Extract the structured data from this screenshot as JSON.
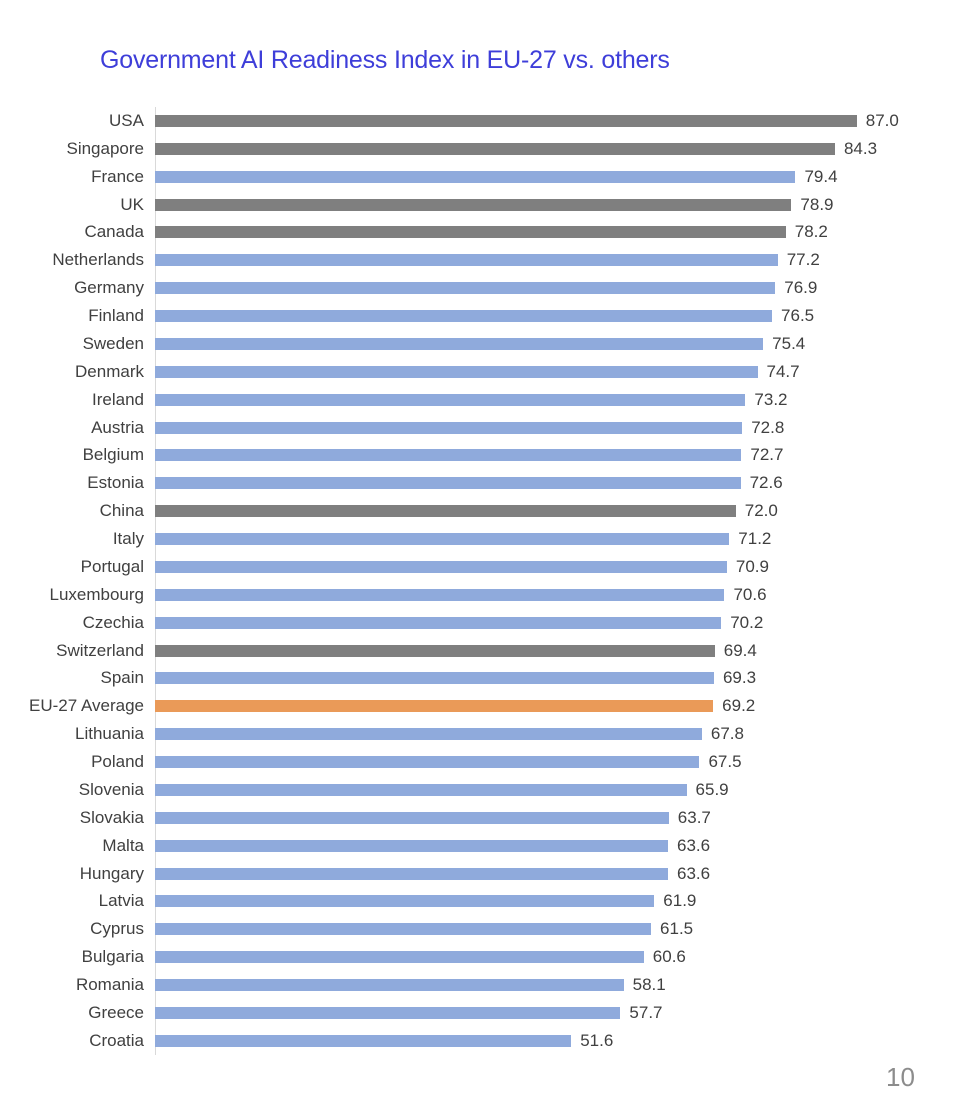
{
  "page": {
    "page_number": "10"
  },
  "title": {
    "text": "Government AI Readiness Index in EU-27 vs. others",
    "color": "#3E3ED9"
  },
  "chart_data": {
    "type": "bar",
    "orientation": "horizontal",
    "title": "Government AI Readiness Index in EU-27 vs. others",
    "xlabel": "",
    "ylabel": "",
    "xlim": [
      0,
      90
    ],
    "grid": false,
    "legend": false,
    "value_labels": "one-decimal, right of bar",
    "colors": {
      "eu": "#8FAADC",
      "non_eu": "#7F7F7F",
      "average": "#EA9A58"
    },
    "axis_line_color": "#D9D9D9",
    "label_text_color": "#404040",
    "points": [
      {
        "label": "USA",
        "value": 87.0,
        "group": "non_eu"
      },
      {
        "label": "Singapore",
        "value": 84.3,
        "group": "non_eu"
      },
      {
        "label": "France",
        "value": 79.4,
        "group": "eu"
      },
      {
        "label": "UK",
        "value": 78.9,
        "group": "non_eu"
      },
      {
        "label": "Canada",
        "value": 78.2,
        "group": "non_eu"
      },
      {
        "label": "Netherlands",
        "value": 77.2,
        "group": "eu"
      },
      {
        "label": "Germany",
        "value": 76.9,
        "group": "eu"
      },
      {
        "label": "Finland",
        "value": 76.5,
        "group": "eu"
      },
      {
        "label": "Sweden",
        "value": 75.4,
        "group": "eu"
      },
      {
        "label": "Denmark",
        "value": 74.7,
        "group": "eu"
      },
      {
        "label": "Ireland",
        "value": 73.2,
        "group": "eu"
      },
      {
        "label": "Austria",
        "value": 72.8,
        "group": "eu"
      },
      {
        "label": "Belgium",
        "value": 72.7,
        "group": "eu"
      },
      {
        "label": "Estonia",
        "value": 72.6,
        "group": "eu"
      },
      {
        "label": "China",
        "value": 72.0,
        "group": "non_eu"
      },
      {
        "label": "Italy",
        "value": 71.2,
        "group": "eu"
      },
      {
        "label": "Portugal",
        "value": 70.9,
        "group": "eu"
      },
      {
        "label": "Luxembourg",
        "value": 70.6,
        "group": "eu"
      },
      {
        "label": "Czechia",
        "value": 70.2,
        "group": "eu"
      },
      {
        "label": "Switzerland",
        "value": 69.4,
        "group": "non_eu"
      },
      {
        "label": "Spain",
        "value": 69.3,
        "group": "eu"
      },
      {
        "label": "EU-27 Average",
        "value": 69.2,
        "group": "average"
      },
      {
        "label": "Lithuania",
        "value": 67.8,
        "group": "eu"
      },
      {
        "label": "Poland",
        "value": 67.5,
        "group": "eu"
      },
      {
        "label": "Slovenia",
        "value": 65.9,
        "group": "eu"
      },
      {
        "label": "Slovakia",
        "value": 63.7,
        "group": "eu"
      },
      {
        "label": "Malta",
        "value": 63.6,
        "group": "eu"
      },
      {
        "label": "Hungary",
        "value": 63.6,
        "group": "eu"
      },
      {
        "label": "Latvia",
        "value": 61.9,
        "group": "eu"
      },
      {
        "label": "Cyprus",
        "value": 61.5,
        "group": "eu"
      },
      {
        "label": "Bulgaria",
        "value": 60.6,
        "group": "eu"
      },
      {
        "label": "Romania",
        "value": 58.1,
        "group": "eu"
      },
      {
        "label": "Greece",
        "value": 57.7,
        "group": "eu"
      },
      {
        "label": "Croatia",
        "value": 51.6,
        "group": "eu"
      }
    ]
  }
}
